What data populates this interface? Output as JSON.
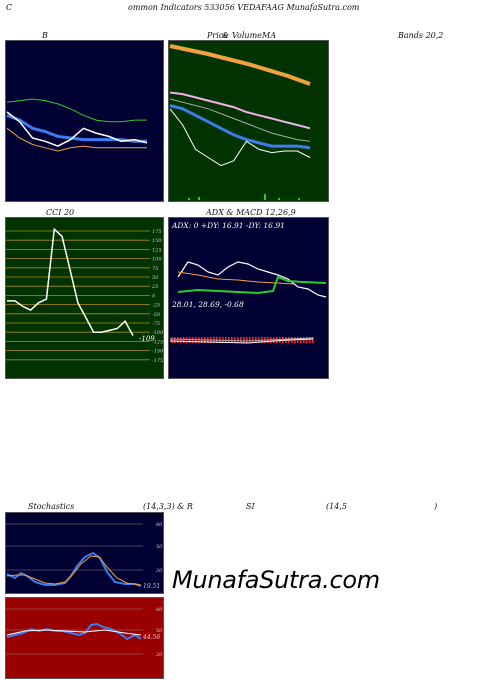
{
  "header": {
    "c": "C",
    "title": "ommon  Indicators 533056  VEDAFAAG MunafaSutra.com"
  },
  "labels": {
    "b": "B",
    "ma_a": "Price   ",
    "ma_b": "  &  ",
    "ma_c": "Volume",
    "ma_d": "MA",
    "bands": "Bands 20,2",
    "cci": "CCI 20",
    "adx_macd": "ADX  & MACD 12,26,9",
    "stoch_a": "Stochastics",
    "stoch_b": "(14,3,3) & R",
    "stoch_c": "SI",
    "stoch_d": "(14,5",
    "stoch_e": ")"
  },
  "watermark": "MunafaSutra.com",
  "colors": {
    "dark_panel": "#000033",
    "ma_panel": "#003300",
    "cci_panel": "#003300",
    "rsi_panel": "#990000",
    "price": "#ffffff",
    "blue": "#3d7cf0",
    "orange": "#f2a13c",
    "green": "#2ecc2e",
    "pink": "#f0b0f0",
    "red": "#ff2020"
  },
  "chart_data": [
    {
      "name": "bollinger",
      "type": "line",
      "series": [
        {
          "key": "upper",
          "values": [
            74,
            75,
            76,
            75,
            73,
            70,
            66,
            63,
            62,
            62,
            63,
            63
          ]
        },
        {
          "key": "middle",
          "values": [
            66,
            63,
            58,
            56,
            53,
            52,
            51,
            51,
            51,
            51,
            50,
            50
          ]
        },
        {
          "key": "lower",
          "values": [
            58,
            52,
            48,
            46,
            44,
            46,
            47,
            46,
            46,
            46,
            46,
            46
          ]
        },
        {
          "key": "price",
          "values": [
            68,
            62,
            52,
            50,
            47,
            51,
            58,
            55,
            53,
            50,
            51,
            49
          ]
        }
      ]
    },
    {
      "name": "price_ma",
      "type": "line",
      "series": [
        {
          "key": "ma_long",
          "values": [
            93,
            91,
            88,
            85,
            82,
            79,
            77,
            75,
            73,
            71,
            70,
            69
          ]
        },
        {
          "key": "ma_pink",
          "values": [
            80,
            79,
            77,
            75,
            73,
            71,
            68,
            66,
            64,
            62,
            60,
            58
          ]
        },
        {
          "key": "ma_grey",
          "values": [
            76,
            74,
            72,
            70,
            67,
            64,
            61,
            58,
            55,
            53,
            51,
            50
          ]
        },
        {
          "key": "ma_blue",
          "values": [
            72,
            70,
            66,
            62,
            58,
            54,
            51,
            49,
            47,
            47,
            47,
            46
          ]
        },
        {
          "key": "price",
          "values": [
            70,
            60,
            45,
            40,
            35,
            38,
            50,
            45,
            43,
            44,
            44,
            40
          ]
        }
      ]
    },
    {
      "name": "cci",
      "type": "line",
      "ticks": [
        "175",
        "150",
        "125",
        "100",
        "75",
        "50",
        "25",
        "0",
        "-25",
        "-50",
        "-75",
        "-100",
        "-125",
        "-150",
        "-175"
      ],
      "values": [
        -15,
        -15,
        -30,
        -40,
        -20,
        -10,
        180,
        160,
        70,
        -20,
        -60,
        -100,
        -100,
        -95,
        -90,
        -70,
        -109
      ],
      "last_label": "-109"
    },
    {
      "name": "adx_macd",
      "type": "line",
      "adx_text": "ADX: 0  +DY: 16.91 -DY: 16.91",
      "macd_text": "28.01,  28.69,  -0.68"
    },
    {
      "name": "stochastics",
      "type": "line",
      "ticks": [
        "80",
        "50",
        "20"
      ],
      "last_label": "19.51"
    },
    {
      "name": "rsi",
      "type": "line",
      "ticks": [
        "80",
        "50",
        "20"
      ],
      "last_label": "44.56"
    }
  ]
}
